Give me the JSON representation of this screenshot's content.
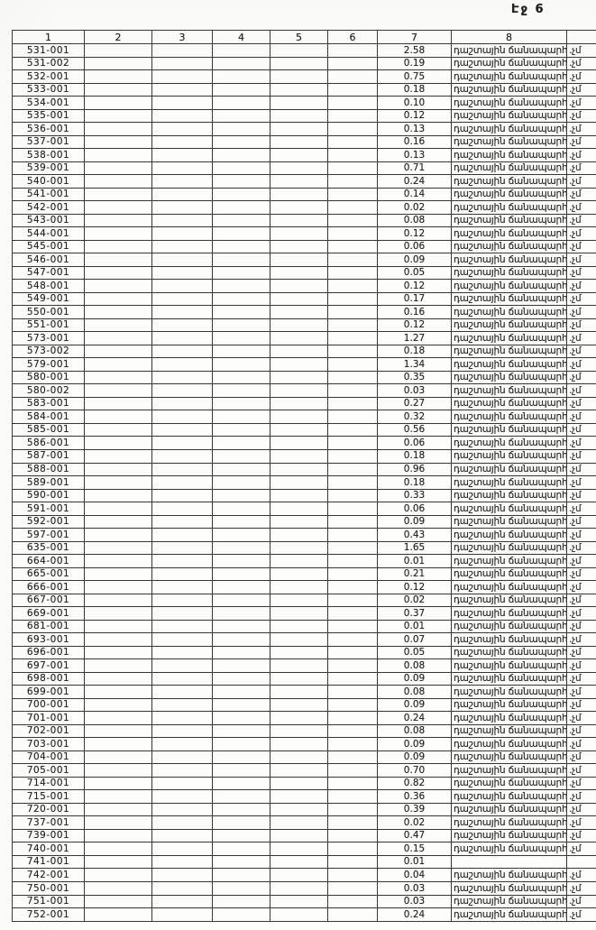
{
  "page": {
    "label": "Էջ 6"
  },
  "table": {
    "column_headers": [
      "1",
      "2",
      "3",
      "4",
      "5",
      "6",
      "7",
      "8"
    ],
    "land_use_label": "դաշտային ճանապարհ",
    "edge_fragment": ".չմ",
    "rows": [
      {
        "id": "531-001",
        "value": "2.58",
        "land_use": "դաշտային ճանապարհ",
        "edge": ".չմ"
      },
      {
        "id": "531-002",
        "value": "0.19",
        "land_use": "դաշտային ճանապարհ",
        "edge": ".չմ"
      },
      {
        "id": "532-001",
        "value": "0.75",
        "land_use": "դաշտային ճանապարհ",
        "edge": ".չմ"
      },
      {
        "id": "533-001",
        "value": "0.18",
        "land_use": "դաշտային ճանապարհ",
        "edge": ".չմ"
      },
      {
        "id": "534-001",
        "value": "0.10",
        "land_use": "դաշտային ճանապարհ",
        "edge": ".չմ"
      },
      {
        "id": "535-001",
        "value": "0.12",
        "land_use": "դաշտային ճանապարհ",
        "edge": ".չմ"
      },
      {
        "id": "536-001",
        "value": "0.13",
        "land_use": "դաշտային ճանապարհ",
        "edge": ".չմ"
      },
      {
        "id": "537-001",
        "value": "0.16",
        "land_use": "դաշտային ճանապարհ",
        "edge": ".չմ"
      },
      {
        "id": "538-001",
        "value": "0.13",
        "land_use": "դաշտային ճանապարհ",
        "edge": ".չմ"
      },
      {
        "id": "539-001",
        "value": "0.71",
        "land_use": "դաշտային ճանապարհ",
        "edge": ".չմ"
      },
      {
        "id": "540-001",
        "value": "0.24",
        "land_use": "դաշտային ճանապարհ",
        "edge": ".չմ"
      },
      {
        "id": "541-001",
        "value": "0.14",
        "land_use": "դաշտային ճանապարհ",
        "edge": ".չմ"
      },
      {
        "id": "542-001",
        "value": "0.02",
        "land_use": "դաշտային ճանապարհ",
        "edge": ".չմ"
      },
      {
        "id": "543-001",
        "value": "0.08",
        "land_use": "դաշտային ճանապարհ",
        "edge": ".չմ"
      },
      {
        "id": "544-001",
        "value": "0.12",
        "land_use": "դաշտային ճանապարհ",
        "edge": ".չմ"
      },
      {
        "id": "545-001",
        "value": "0.06",
        "land_use": "դաշտային ճանապարհ",
        "edge": ".չմ"
      },
      {
        "id": "546-001",
        "value": "0.09",
        "land_use": "դաշտային ճանապարհ",
        "edge": ".չմ"
      },
      {
        "id": "547-001",
        "value": "0.05",
        "land_use": "դաշտային ճանապարհ",
        "edge": ".չմ"
      },
      {
        "id": "548-001",
        "value": "0.12",
        "land_use": "դաշտային ճանապարհ",
        "edge": ".չմ"
      },
      {
        "id": "549-001",
        "value": "0.17",
        "land_use": "դաշտային ճանապարհ",
        "edge": ".չմ"
      },
      {
        "id": "550-001",
        "value": "0.16",
        "land_use": "դաշտային ճանապարհ",
        "edge": ".չմ"
      },
      {
        "id": "551-001",
        "value": "0.12",
        "land_use": "դաշտային ճանապարհ",
        "edge": ".չմ"
      },
      {
        "id": "573-001",
        "value": "1.27",
        "land_use": "դաշտային ճանապարհ",
        "edge": ".չմ"
      },
      {
        "id": "573-002",
        "value": "0.18",
        "land_use": "դաշտային ճանապարհ",
        "edge": ".չմ"
      },
      {
        "id": "579-001",
        "value": "1.34",
        "land_use": "դաշտային ճանապարհ",
        "edge": ".չմ"
      },
      {
        "id": "580-001",
        "value": "0.35",
        "land_use": "դաշտային ճանապարհ",
        "edge": ".չմ"
      },
      {
        "id": "580-002",
        "value": "0.03",
        "land_use": "դաշտային ճանապարհ",
        "edge": ".չմ"
      },
      {
        "id": "583-001",
        "value": "0.27",
        "land_use": "դաշտային ճանապարհ",
        "edge": ".չմ"
      },
      {
        "id": "584-001",
        "value": "0.32",
        "land_use": "դաշտային ճանապարհ",
        "edge": ".չմ"
      },
      {
        "id": "585-001",
        "value": "0.56",
        "land_use": "դաշտային ճանապարհ",
        "edge": ".չմ"
      },
      {
        "id": "586-001",
        "value": "0.06",
        "land_use": "դաշտային ճանապարհ",
        "edge": ".չմ"
      },
      {
        "id": "587-001",
        "value": "0.18",
        "land_use": "դաշտային ճանապարհ",
        "edge": ".չմ"
      },
      {
        "id": "588-001",
        "value": "0.96",
        "land_use": "դաշտային ճանապարհ",
        "edge": ".չմ"
      },
      {
        "id": "589-001",
        "value": "0.18",
        "land_use": "դաշտային ճանապարհ",
        "edge": ".չմ"
      },
      {
        "id": "590-001",
        "value": "0.33",
        "land_use": "դաշտային ճանապարհ",
        "edge": ".չմ"
      },
      {
        "id": "591-001",
        "value": "0.06",
        "land_use": "դաշտային ճանապարհ",
        "edge": ".չմ"
      },
      {
        "id": "592-001",
        "value": "0.09",
        "land_use": "դաշտային ճանապարհ",
        "edge": ".չմ"
      },
      {
        "id": "597-001",
        "value": "0.43",
        "land_use": "դաշտային ճանապարհ",
        "edge": ".չմ"
      },
      {
        "id": "635-001",
        "value": "1.65",
        "land_use": "դաշտային ճանապարհ",
        "edge": ".չմ"
      },
      {
        "id": "664-001",
        "value": "0.01",
        "land_use": "դաշտային ճանապարհ",
        "edge": ".չմ"
      },
      {
        "id": "665-001",
        "value": "0.21",
        "land_use": "դաշտային ճանապարհ",
        "edge": ".չմ"
      },
      {
        "id": "666-001",
        "value": "0.12",
        "land_use": "դաշտային ճանապարհ",
        "edge": ".չմ"
      },
      {
        "id": "667-001",
        "value": "0.02",
        "land_use": "դաշտային ճանապարհ",
        "edge": ".չմ"
      },
      {
        "id": "669-001",
        "value": "0.37",
        "land_use": "դաշտային ճանապարհ",
        "edge": ".չմ"
      },
      {
        "id": "681-001",
        "value": "0.01",
        "land_use": "դաշտային ճանապարհ",
        "edge": ".չմ"
      },
      {
        "id": "693-001",
        "value": "0.07",
        "land_use": "դաշտային ճանապարհ",
        "edge": ".չմ"
      },
      {
        "id": "696-001",
        "value": "0.05",
        "land_use": "դաշտային ճանապարհ",
        "edge": ".չմ"
      },
      {
        "id": "697-001",
        "value": "0.08",
        "land_use": "դաշտային ճանապարհ",
        "edge": ".չմ"
      },
      {
        "id": "698-001",
        "value": "0.09",
        "land_use": "դաշտային ճանապարհ",
        "edge": ".չմ"
      },
      {
        "id": "699-001",
        "value": "0.08",
        "land_use": "դաշտային ճանապարհ",
        "edge": ".չմ"
      },
      {
        "id": "700-001",
        "value": "0.09",
        "land_use": "դաշտային ճանապարհ",
        "edge": ".չմ"
      },
      {
        "id": "701-001",
        "value": "0.24",
        "land_use": "դաշտային ճանապարհ",
        "edge": ".չմ"
      },
      {
        "id": "702-001",
        "value": "0.08",
        "land_use": "դաշտային ճանապարհ",
        "edge": ".չմ"
      },
      {
        "id": "703-001",
        "value": "0.09",
        "land_use": "դաշտային ճանապարհ",
        "edge": ".չմ"
      },
      {
        "id": "704-001",
        "value": "0.09",
        "land_use": "դաշտային ճանապարհ",
        "edge": ".չմ"
      },
      {
        "id": "705-001",
        "value": "0.70",
        "land_use": "դաշտային ճանապարհ",
        "edge": ".չմ"
      },
      {
        "id": "714-001",
        "value": "0.82",
        "land_use": "դաշտային ճանապարհ",
        "edge": ".չմ"
      },
      {
        "id": "715-001",
        "value": "0.36",
        "land_use": "դաշտային ճանապարհ",
        "edge": ".չմ"
      },
      {
        "id": "720-001",
        "value": "0.39",
        "land_use": "դաշտային ճանապարհ",
        "edge": ".չմ"
      },
      {
        "id": "737-001",
        "value": "0.02",
        "land_use": "դաշտային ճանապարհ",
        "edge": ".չմ"
      },
      {
        "id": "739-001",
        "value": "0.47",
        "land_use": "դաշտային ճանապարհ",
        "edge": ".չմ"
      },
      {
        "id": "740-001",
        "value": "0.15",
        "land_use": "դաշտային ճանապարհ",
        "edge": ".չմ"
      },
      {
        "id": "741-001",
        "value": "0.01",
        "land_use": "",
        "edge": ""
      },
      {
        "id": "742-001",
        "value": "0.04",
        "land_use": "դաշտային ճանապարհ",
        "edge": ".չմ"
      },
      {
        "id": "750-001",
        "value": "0.03",
        "land_use": "դաշտային ճանապարհ",
        "edge": ".չմ"
      },
      {
        "id": "751-001",
        "value": "0.03",
        "land_use": "դաշտային ճանապարհ",
        "edge": ".չմ"
      },
      {
        "id": "752-001",
        "value": "0.24",
        "land_use": "դաշտային ճանապարհ",
        "edge": ".չմ"
      }
    ]
  }
}
